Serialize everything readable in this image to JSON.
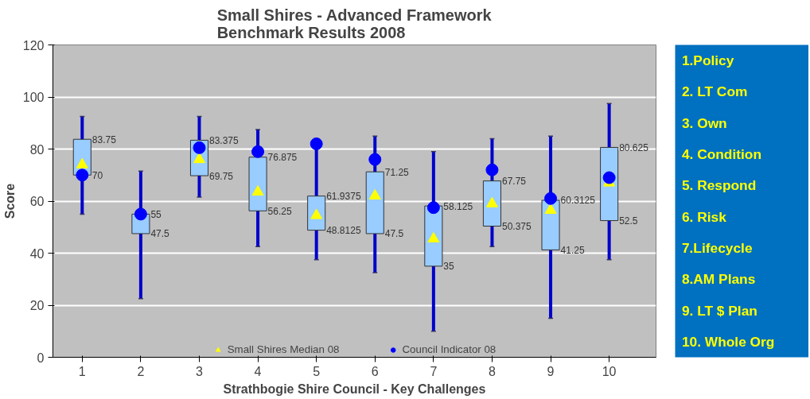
{
  "chart_data": [
    {
      "type": "box",
      "title": "Small Shires - Advanced Framework\nBenchmark Results 2008",
      "xlabel": "Strathbogie Shire Council - Key Challenges",
      "ylabel": "Score",
      "categories": [
        "1",
        "2",
        "3",
        "4",
        "5",
        "6",
        "7",
        "8",
        "9",
        "10"
      ],
      "ylim": [
        0,
        120
      ],
      "yticks": [
        0,
        20,
        40,
        60,
        80,
        100,
        120
      ],
      "grid": "y",
      "legend": "bottom",
      "annotations": [
        {
          "text": "83.75",
          "x": "1",
          "y": 83.75
        },
        {
          "text": "70",
          "x": "1",
          "y": 70
        },
        {
          "text": "55",
          "x": "2",
          "y": 55
        },
        {
          "text": "47.5",
          "x": "2",
          "y": 47.5
        },
        {
          "text": "83.375",
          "x": "3",
          "y": 83.375
        },
        {
          "text": "69.75",
          "x": "3",
          "y": 69.75
        },
        {
          "text": "76.875",
          "x": "4",
          "y": 76.875
        },
        {
          "text": "56.25",
          "x": "4",
          "y": 56.25
        },
        {
          "text": "61.9375",
          "x": "5",
          "y": 61.9375
        },
        {
          "text": "48.8125",
          "x": "5",
          "y": 48.8125
        },
        {
          "text": "71.25",
          "x": "6",
          "y": 71.25
        },
        {
          "text": "47.5",
          "x": "6",
          "y": 47.5
        },
        {
          "text": "58.125",
          "x": "7",
          "y": 58.125
        },
        {
          "text": "35",
          "x": "7",
          "y": 35
        },
        {
          "text": "67.75",
          "x": "8",
          "y": 67.75
        },
        {
          "text": "50.375",
          "x": "8",
          "y": 50.375
        },
        {
          "text": "60.3125",
          "x": "9",
          "y": 60.3125
        },
        {
          "text": "41.25",
          "x": "9",
          "y": 41.25
        },
        {
          "text": "80.625",
          "x": "10",
          "y": 80.625
        },
        {
          "text": "52.5",
          "x": "10",
          "y": 52.5
        }
      ],
      "series": [
        {
          "type": "box",
          "color": "#99ccff",
          "boxes": [
            {
              "low": 55,
              "q1": 70,
              "q3": 83.75,
              "high": 92.5
            },
            {
              "low": 22.5,
              "q1": 47.5,
              "q3": 55,
              "high": 71.5
            },
            {
              "low": 61.5,
              "q1": 69.75,
              "q3": 83.375,
              "high": 92.5
            },
            {
              "low": 42.5,
              "q1": 56.25,
              "q3": 76.875,
              "high": 87.5
            },
            {
              "low": 37.5,
              "q1": 48.8125,
              "q3": 61.9375,
              "high": 82
            },
            {
              "low": 32.5,
              "q1": 47.5,
              "q3": 71.25,
              "high": 85
            },
            {
              "low": 10,
              "q1": 35,
              "q3": 58.125,
              "high": 79
            },
            {
              "low": 42.5,
              "q1": 50.375,
              "q3": 67.75,
              "high": 84
            },
            {
              "low": 15,
              "q1": 41.25,
              "q3": 60.3125,
              "high": 85
            },
            {
              "low": 37.5,
              "q1": 52.5,
              "q3": 80.625,
              "high": 97.5
            }
          ]
        },
        {
          "type": "scatter",
          "name": "Small Shires Median 08",
          "color": "#ffff00",
          "marker": "triangle",
          "values": [
            74,
            null,
            76,
            63.5,
            54.5,
            62,
            45.5,
            59,
            56.5,
            67
          ]
        },
        {
          "type": "scatter",
          "name": "Council Indicator 08",
          "color": "#0000ff",
          "marker": "circle",
          "values": [
            70,
            55,
            80.5,
            79,
            82,
            76,
            57.5,
            72,
            61,
            69
          ]
        }
      ]
    },
    {
      "type": "other",
      "color": "#0070c0",
      "annotations": [
        "1.Policy",
        "2. LT Com",
        "3. Own",
        "4. Condition",
        "5. Respond",
        "6. Risk",
        "7.Lifecycle",
        "8.AM Plans",
        "9. LT $ Plan",
        "10. Whole Org"
      ]
    }
  ]
}
